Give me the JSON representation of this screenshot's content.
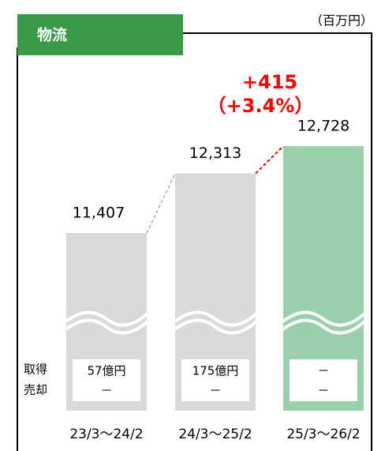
{
  "chart_data": {
    "type": "bar",
    "title": "物流",
    "unit_label": "（百万円）",
    "categories": [
      "23/3～24/2",
      "24/3～25/2",
      "25/3～26/2"
    ],
    "values": [
      11407,
      12313,
      12728
    ],
    "value_labels": [
      "11,407",
      "12,313",
      "12,728"
    ],
    "colors": [
      "#d9d9d9",
      "#d9d9d9",
      "#99cfab"
    ],
    "annotations": [
      "+415",
      "（+3.4%）"
    ],
    "row_labels": [
      "取得",
      "売却"
    ],
    "table": [
      [
        "57億円",
        "－"
      ],
      [
        "175億円",
        "－"
      ],
      [
        "－",
        "－"
      ]
    ]
  }
}
